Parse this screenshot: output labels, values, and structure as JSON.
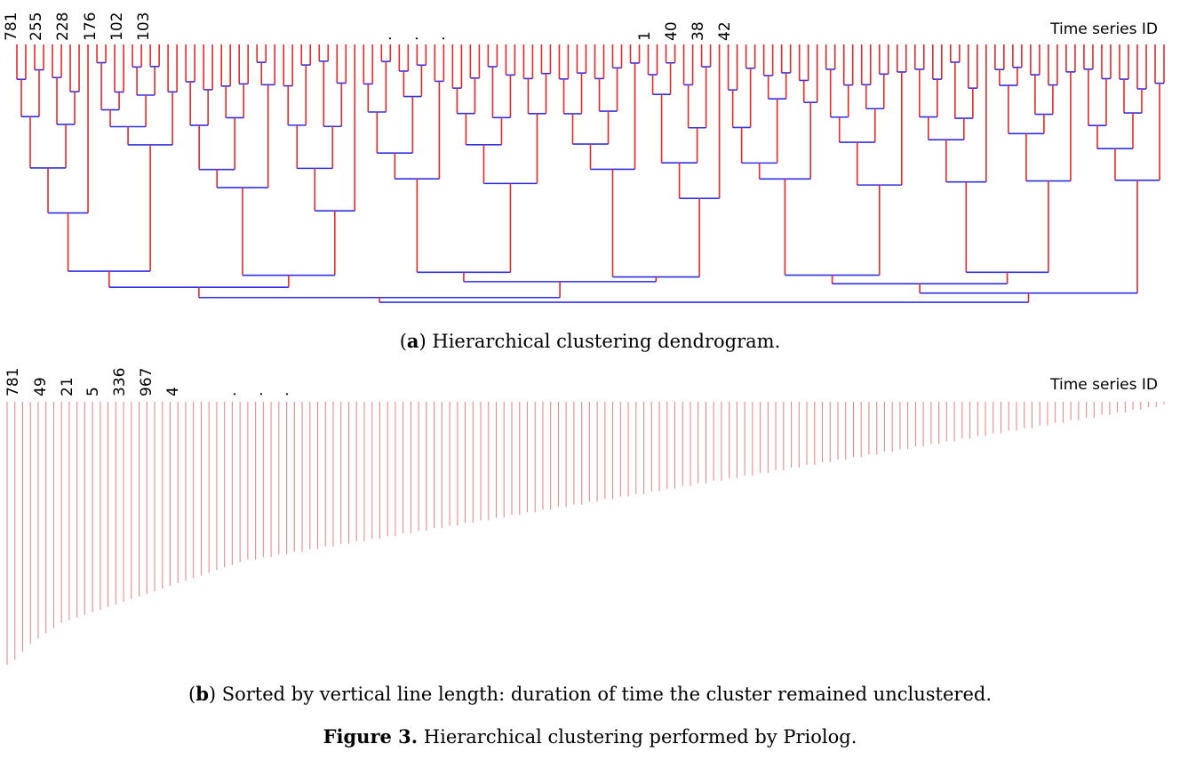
{
  "chart_data": [
    {
      "type": "dendrogram",
      "axis_label": "Time series ID",
      "leaf_labels": [
        "781",
        "255",
        "228",
        "176",
        "102",
        "103",
        ".",
        ".",
        ".",
        "1",
        "40",
        "38",
        "42"
      ],
      "leaf_count": 130,
      "colors": {
        "vertical": "#e8282a",
        "horizontal": "#3030e6"
      },
      "caption": {
        "letter": "a",
        "text": ") Hierarchical clustering dendrogram."
      },
      "caption_open": "("
    },
    {
      "type": "bar",
      "axis_label": "Time series ID",
      "leaf_labels": [
        "781",
        "49",
        "21",
        "5",
        "336",
        "967",
        "4",
        ".",
        ".",
        "."
      ],
      "note": "vertical lines sorted by length, descending",
      "values": [
        100,
        98,
        95,
        92,
        90,
        88,
        86,
        84,
        83,
        82,
        81,
        80,
        79,
        78,
        77,
        76,
        75,
        74,
        73,
        72,
        71,
        70,
        69,
        68,
        67,
        66,
        65,
        64,
        63,
        62,
        61,
        60,
        60,
        59,
        59,
        58,
        58,
        57,
        57,
        56,
        56,
        55,
        55,
        54,
        54,
        53,
        53,
        52,
        52,
        51,
        51,
        50,
        50,
        49,
        49,
        48,
        48,
        47,
        47,
        46,
        46,
        45,
        45,
        44,
        44,
        43,
        43,
        42,
        42,
        41,
        41,
        40,
        40,
        39,
        39,
        38,
        38,
        37,
        37,
        36,
        36,
        35,
        35,
        34,
        34,
        33,
        33,
        32,
        32,
        31,
        31,
        30,
        30,
        29,
        29,
        28,
        28,
        27,
        27,
        26,
        26,
        25,
        25,
        24,
        24,
        23,
        23,
        22,
        22,
        21,
        21,
        20,
        20,
        19,
        19,
        18,
        18,
        17,
        17,
        16,
        16,
        15,
        15,
        14,
        14,
        13,
        13,
        12,
        12,
        11,
        11,
        10,
        10,
        9,
        9,
        8,
        8,
        7,
        7,
        6,
        6,
        5,
        5,
        4,
        4,
        3,
        3,
        2,
        2,
        1
      ],
      "colors": {
        "line": "#f08a8a"
      },
      "caption": {
        "letter": "b",
        "text": ") Sorted by vertical line length: duration of time the cluster remained unclustered."
      },
      "caption_open": "("
    }
  ],
  "figure_caption": {
    "label": "Figure 3.",
    "text": " Hierarchical clustering performed by Priolog."
  }
}
